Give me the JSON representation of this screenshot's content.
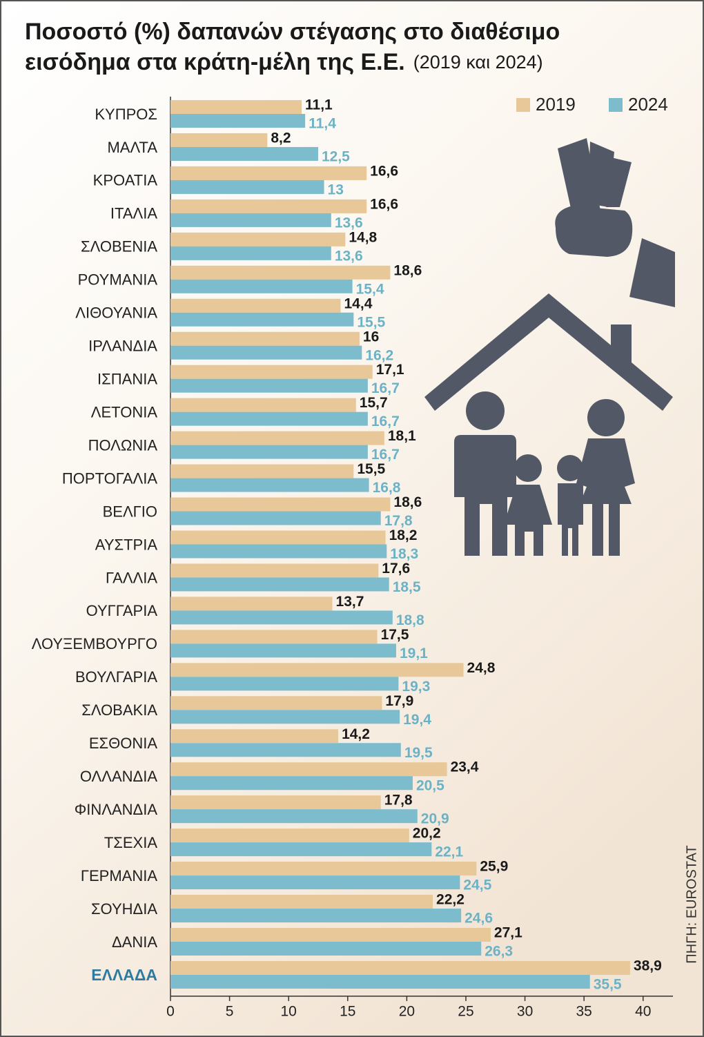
{
  "chart_data": {
    "type": "bar",
    "orientation": "horizontal",
    "title": "Ποσοστό (%) δαπανών στέγασης στο διαθέσιμο",
    "title_line2": "εισόδημα στα κράτη-μέλη της Ε.Ε.",
    "subtitle": "(2019 και 2024)",
    "source": "ΠΗΓΗ: EUROSTAT",
    "categories": [
      "ΚΥΠΡΟΣ",
      "ΜΑΛΤΑ",
      "ΚΡΟΑΤΙΑ",
      "ΙΤΑΛΙΑ",
      "ΣΛΟΒΕΝΙΑ",
      "ΡΟΥΜΑΝΙΑ",
      "ΛΙΘΟΥΑΝΙΑ",
      "ΙΡΛΑΝΔΙΑ",
      "ΙΣΠΑΝΙΑ",
      "ΛΕΤΟΝΙΑ",
      "ΠΟΛΩΝΙΑ",
      "ΠΟΡΤΟΓΑΛΙΑ",
      "ΒΕΛΓΙΟ",
      "ΑΥΣΤΡΙΑ",
      "ΓΑΛΛΙΑ",
      "ΟΥΓΓΑΡΙΑ",
      "ΛΟΥΞΕΜΒΟΥΡΓΟ",
      "ΒΟΥΛΓΑΡΙΑ",
      "ΣΛΟΒΑΚΙΑ",
      "ΕΣΘΟΝΙΑ",
      "ΟΛΛΑΝΔΙΑ",
      "ΦΙΝΛΑΝΔΙΑ",
      "ΤΣΕΧΙΑ",
      "ΓΕΡΜΑΝΙΑ",
      "ΣΟΥΗΔΙΑ",
      "ΔΑΝΙΑ",
      "ΕΛΛΑΔΑ"
    ],
    "series": [
      {
        "name": "2019",
        "color": "#e8c898",
        "label_color": "#1a1a1a",
        "values": [
          11.1,
          8.2,
          16.6,
          16.6,
          14.8,
          18.6,
          14.4,
          16,
          17.1,
          15.7,
          18.1,
          15.5,
          18.6,
          18.2,
          17.6,
          13.7,
          17.5,
          24.8,
          17.9,
          14.2,
          23.4,
          17.8,
          20.2,
          25.9,
          22.2,
          27.1,
          38.9
        ],
        "value_labels": [
          "11,1",
          "8,2",
          "16,6",
          "16,6",
          "14,8",
          "18,6",
          "14,4",
          "16",
          "17,1",
          "15,7",
          "18,1",
          "15,5",
          "18,6",
          "18,2",
          "17,6",
          "13,7",
          "17,5",
          "24,8",
          "17,9",
          "14,2",
          "23,4",
          "17,8",
          "20,2",
          "25,9",
          "22,2",
          "27,1",
          "38,9"
        ]
      },
      {
        "name": "2024",
        "color": "#7dbccd",
        "label_color": "#6cb2c6",
        "values": [
          11.4,
          12.5,
          13,
          13.6,
          13.6,
          15.4,
          15.5,
          16.2,
          16.7,
          16.7,
          16.7,
          16.8,
          17.8,
          18.3,
          18.5,
          18.8,
          19.1,
          19.3,
          19.4,
          19.5,
          20.5,
          20.9,
          22.1,
          24.5,
          24.6,
          26.3,
          35.5
        ],
        "value_labels": [
          "11,4",
          "12,5",
          "13",
          "13,6",
          "13,6",
          "15,4",
          "15,5",
          "16,2",
          "16,7",
          "16,7",
          "16,7",
          "16,8",
          "17,8",
          "18,3",
          "18,5",
          "18,8",
          "19,1",
          "19,3",
          "19,4",
          "19,5",
          "20,5",
          "20,9",
          "22,1",
          "24,5",
          "24,6",
          "26,3",
          "35,5"
        ]
      }
    ],
    "xlim": [
      0,
      42
    ],
    "xticks": [
      0,
      5,
      10,
      15,
      20,
      25,
      30,
      35,
      40
    ],
    "legend": "top-right"
  }
}
